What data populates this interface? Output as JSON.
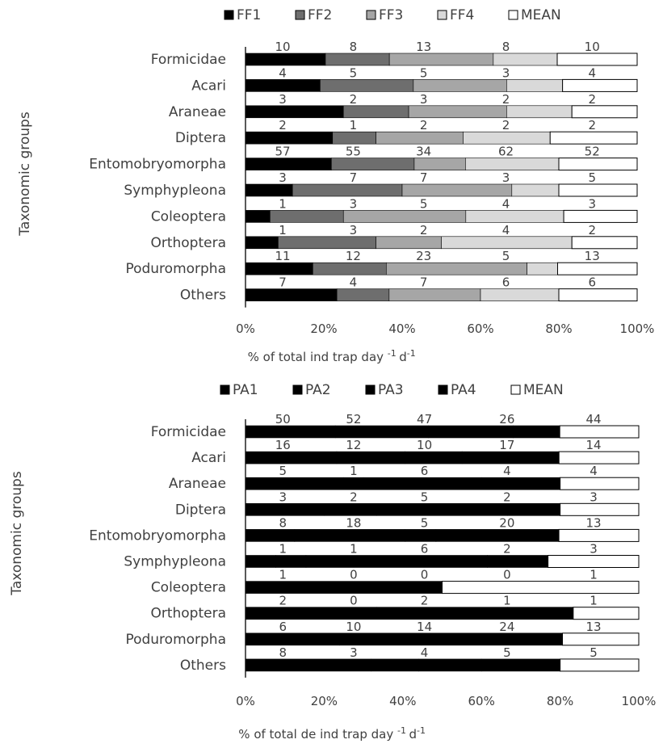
{
  "chart_data": [
    {
      "type": "bar",
      "stacked": "percent",
      "orientation": "horizontal",
      "categories": [
        "Formicidae",
        "Acari",
        "Araneae",
        "Diptera",
        "Entomobryomorpha",
        "Symphypleona",
        "Coleoptera",
        "Orthoptera",
        "Poduromorpha",
        "Others"
      ],
      "series": [
        {
          "name": "FF1",
          "color": "#000000",
          "values": [
            10,
            4,
            3,
            2,
            57,
            3,
            1,
            1,
            11,
            7
          ]
        },
        {
          "name": "FF2",
          "color": "#6e6e6e",
          "values": [
            8,
            5,
            2,
            1,
            55,
            7,
            3,
            3,
            12,
            4
          ]
        },
        {
          "name": "FF3",
          "color": "#a6a6a6",
          "values": [
            13,
            5,
            3,
            2,
            34,
            7,
            5,
            2,
            23,
            7
          ]
        },
        {
          "name": "FF4",
          "color": "#d9d9d9",
          "values": [
            8,
            3,
            2,
            2,
            62,
            3,
            4,
            4,
            5,
            6
          ]
        },
        {
          "name": "MEAN",
          "color": "#ffffff",
          "values": [
            10,
            4,
            2,
            2,
            52,
            5,
            3,
            2,
            13,
            6
          ]
        }
      ],
      "xticks": [
        "0%",
        "20%",
        "40%",
        "60%",
        "80%",
        "100%"
      ],
      "xlim": [
        0,
        100
      ],
      "xlabel": "% of total ind trap day",
      "xlabel_sup": "-1",
      "xlabel_tail": "d",
      "xlabel_tail_sup": "-1",
      "ylabel": "Taxonomic groups",
      "legend_position": "top"
    },
    {
      "type": "bar",
      "stacked": "percent",
      "orientation": "horizontal",
      "categories": [
        "Formicidae",
        "Acari",
        "Araneae",
        "Diptera",
        "Entomobryomorpha",
        "Symphypleona",
        "Coleoptera",
        "Orthoptera",
        "Poduromorpha",
        "Others"
      ],
      "series": [
        {
          "name": "PA1",
          "color": "#000000",
          "values": [
            50,
            16,
            5,
            3,
            8,
            1,
            1,
            2,
            6,
            8
          ]
        },
        {
          "name": "PA2",
          "color": "#000000",
          "values": [
            52,
            12,
            1,
            2,
            18,
            1,
            0,
            0,
            10,
            3
          ]
        },
        {
          "name": "PA3",
          "color": "#000000",
          "values": [
            47,
            10,
            6,
            5,
            5,
            6,
            0,
            2,
            14,
            4
          ]
        },
        {
          "name": "PA4",
          "color": "#000000",
          "values": [
            26,
            17,
            4,
            2,
            20,
            2,
            0,
            1,
            24,
            5
          ]
        },
        {
          "name": "MEAN",
          "color": "#ffffff",
          "values": [
            44,
            14,
            4,
            3,
            13,
            3,
            1,
            1,
            13,
            5
          ]
        }
      ],
      "xticks": [
        "0%",
        "20%",
        "40%",
        "60%",
        "80%",
        "100%"
      ],
      "xlim": [
        0,
        100
      ],
      "xlabel": "% of total de ind trap day",
      "xlabel_sup": "-1",
      "xlabel_tail": "d",
      "xlabel_tail_sup": "-1",
      "ylabel": "Taxonomic groups",
      "legend_position": "top"
    }
  ]
}
